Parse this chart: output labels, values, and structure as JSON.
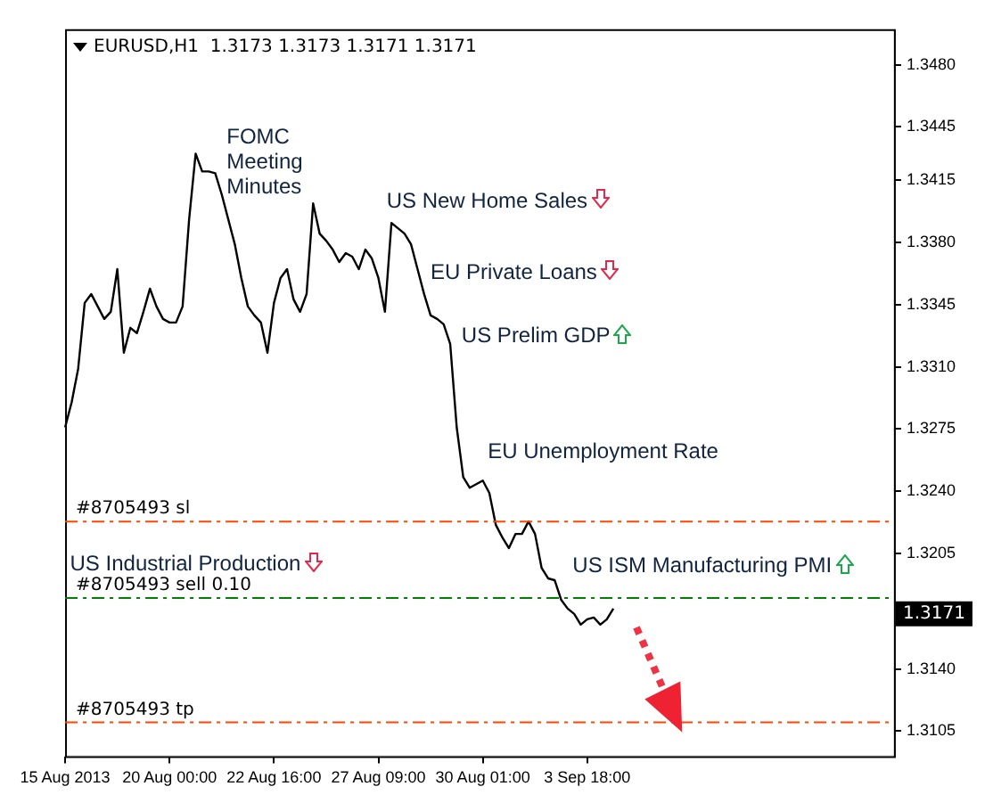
{
  "chart_data": {
    "type": "line",
    "title": "EURUSD,H1  1.3173 1.3173 1.3171 1.3171",
    "categories": [
      "15 Aug 2013",
      null,
      null,
      null,
      null,
      null,
      null,
      null,
      null,
      null,
      null,
      null,
      null,
      null,
      null,
      null,
      "20 Aug 00:00",
      null,
      null,
      null,
      null,
      null,
      null,
      null,
      null,
      null,
      null,
      null,
      null,
      null,
      null,
      null,
      "22 Aug 16:00",
      null,
      null,
      null,
      null,
      null,
      null,
      null,
      null,
      null,
      null,
      null,
      null,
      null,
      null,
      null,
      "27 Aug 09:00",
      null,
      null,
      null,
      null,
      null,
      null,
      null,
      null,
      null,
      null,
      null,
      null,
      null,
      null,
      null,
      "30 Aug 01:00",
      null,
      null,
      null,
      null,
      null,
      null,
      null,
      null,
      null,
      null,
      null,
      null,
      null,
      null,
      null,
      "3 Sep 18:00",
      null,
      null,
      null,
      null,
      null,
      null,
      null,
      null,
      null,
      null,
      null,
      null,
      null,
      null,
      null,
      null,
      null,
      null,
      null,
      null,
      null,
      null,
      null,
      null,
      null,
      null,
      null,
      null,
      null,
      null,
      null,
      null,
      null,
      null,
      null,
      null,
      null,
      null,
      null,
      null,
      null,
      null,
      null,
      null,
      null,
      null,
      null
    ],
    "series": [
      {
        "color": "#000000",
        "values": [
          1.3276,
          1.329,
          1.3309,
          1.3346,
          1.3351,
          1.3344,
          1.3337,
          1.3341,
          1.3365,
          1.3318,
          1.3332,
          1.3329,
          1.3341,
          1.3354,
          1.3344,
          1.3337,
          1.3335,
          1.3335,
          1.3344,
          1.3393,
          1.343,
          1.342,
          1.342,
          1.3419,
          1.3407,
          1.3393,
          1.3379,
          1.336,
          1.3344,
          1.3339,
          1.3335,
          1.3318,
          1.3346,
          1.336,
          1.3365,
          1.3348,
          1.3341,
          1.3351,
          1.3402,
          1.3385,
          1.3381,
          1.3376,
          1.3369,
          1.3374,
          1.3372,
          1.3365,
          1.3376,
          1.3371,
          1.336,
          1.3341,
          1.3391,
          1.3388,
          1.3385,
          1.3379,
          1.3365,
          1.3351,
          1.3339,
          1.3337,
          1.3334,
          1.3323,
          1.3276,
          1.3248,
          1.3242,
          1.3244,
          1.3246,
          1.3239,
          1.3221,
          1.3214,
          1.3208,
          1.3216,
          1.3216,
          1.3223,
          1.3216,
          1.3197,
          1.3191,
          1.319,
          1.3179,
          1.3174,
          1.3171,
          1.3165,
          1.3168,
          1.3169,
          1.3165,
          1.3168,
          1.3174,
          null,
          null,
          null,
          null,
          null,
          null,
          null,
          null,
          null,
          null,
          null,
          null,
          null,
          null,
          null,
          null,
          null,
          null,
          null,
          null,
          null,
          null,
          null,
          null,
          null,
          null,
          null,
          null,
          null,
          null,
          null,
          null,
          null,
          null,
          null,
          null,
          null,
          null,
          null,
          null,
          null,
          null,
          null
        ]
      }
    ],
    "ylim": [
      1.3091,
      1.35
    ],
    "yticks": [
      {
        "value": 1.348,
        "label": "1.3480"
      },
      {
        "value": 1.3445,
        "label": "1.3445"
      },
      {
        "value": 1.3415,
        "label": "1.3415"
      },
      {
        "value": 1.338,
        "label": "1.3380"
      },
      {
        "value": 1.3345,
        "label": "1.3345"
      },
      {
        "value": 1.331,
        "label": "1.3310"
      },
      {
        "value": 1.3275,
        "label": "1.3275"
      },
      {
        "value": 1.324,
        "label": "1.3240"
      },
      {
        "value": 1.3205,
        "label": "1.3205"
      },
      {
        "value": 1.314,
        "label": "1.3140"
      },
      {
        "value": 1.3105,
        "label": "1.3105"
      }
    ],
    "ref_lines": [
      {
        "axis": "y",
        "value": 1.3223,
        "label": "#8705493 sl",
        "color": "#ff4500",
        "line_style": "dashed"
      },
      {
        "axis": "y",
        "value": 1.318,
        "label": "#8705493 sell 0.10",
        "color": "#008000",
        "line_style": "dashed"
      },
      {
        "axis": "y",
        "value": 1.311,
        "label": "#8705493 tp",
        "color": "#ff4500",
        "line_style": "dashed"
      }
    ],
    "annotations": [
      "FOMC Meeting Minutes",
      "US New Home Sales",
      "EU Private Loans",
      "US Prelim GDP",
      "EU Unemployment Rate",
      "US Industrial Production",
      "US ISM Manufacturing PMI",
      {
        "text": "1.3171",
        "y": 1.3171
      }
    ],
    "grid": false,
    "legend": false,
    "marker": "none",
    "line_style": "solid"
  }
}
